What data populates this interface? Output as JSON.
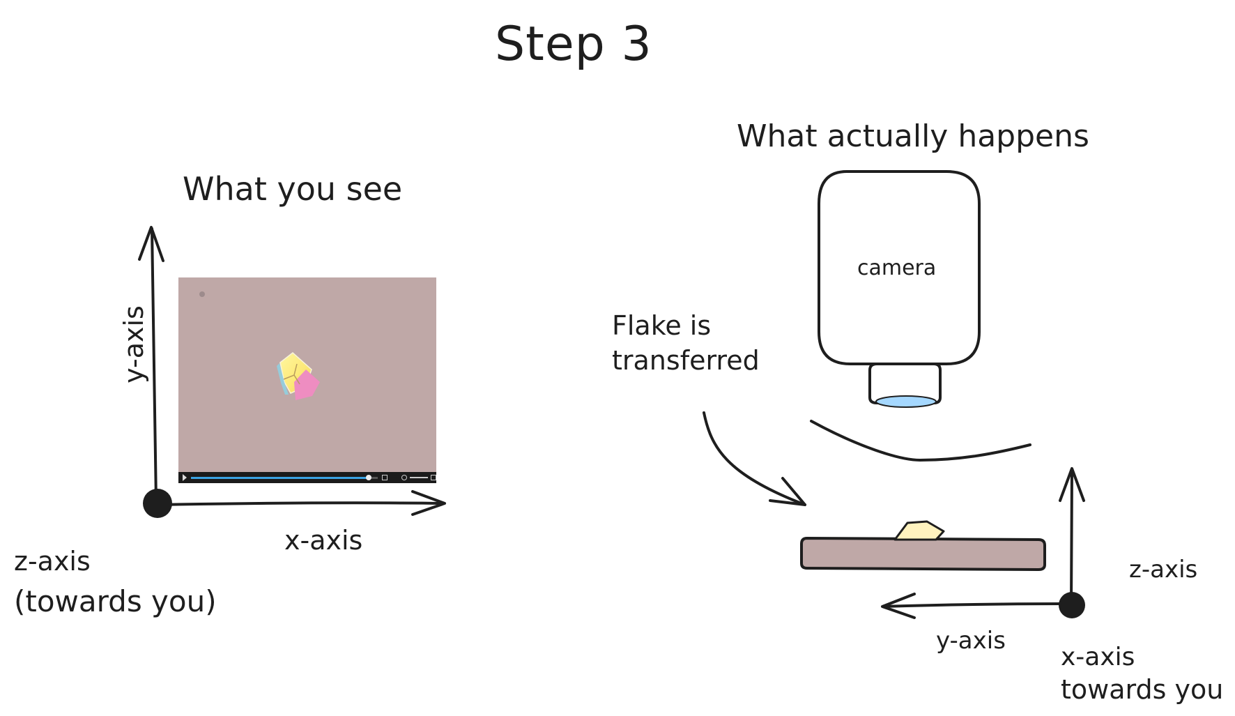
{
  "title": "Step 3",
  "left_panel": {
    "heading": "What you see",
    "y_axis_label": "y-axis",
    "x_axis_label": "x-axis",
    "z_axis_label": "z-axis",
    "z_axis_note": "(towards you)",
    "video": {
      "progress": 0.95
    }
  },
  "right_panel": {
    "heading": "What actually happens",
    "camera_label": "camera",
    "flake_note_line1": "Flake is",
    "flake_note_line2": "transferred",
    "z_axis_label": "z-axis",
    "y_axis_label": "y-axis",
    "x_axis_label": "x-axis",
    "x_axis_note": "towards you"
  },
  "colors": {
    "ink": "#1e1e1e",
    "substrate": "#bfa8a7",
    "lens": "#a5d8ff",
    "flake": "#fff3bf",
    "video_progress": "#3aa3e3"
  }
}
